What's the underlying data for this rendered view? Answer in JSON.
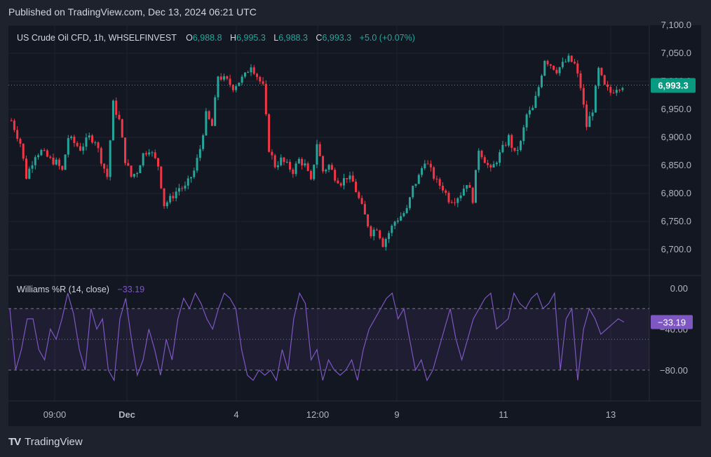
{
  "publisher": {
    "text": "Published on TradingView.com, Dec 13, 2024 06:21 UTC"
  },
  "legend": {
    "symbol": "US Crude Oil CFD, 1h, WHSELFINVEST",
    "o_label": "O",
    "o": "6,988.8",
    "h_label": "H",
    "h": "6,995.3",
    "l_label": "L",
    "l": "6,988.3",
    "c_label": "C",
    "c": "6,993.3",
    "change": "+5.0 (+0.07%)"
  },
  "indicator": {
    "name": "Williams %R (14, close)",
    "value": "−33.19",
    "badge": "−33.19"
  },
  "price_badge": "6,993.3",
  "footer": {
    "brand": "TradingView"
  },
  "colors": {
    "up": "#26a69a",
    "down": "#f23645",
    "wr_line": "#7e57c2",
    "background": "#131722",
    "badge": "#089981",
    "wr_badge": "#7e57c2"
  },
  "chart_data": [
    {
      "type": "candlestick",
      "title": "US Crude Oil CFD, 1h, WHSELFINVEST",
      "x_ticks": [
        "09:00",
        "Dec",
        "4",
        "12:00",
        "9",
        "11",
        "13"
      ],
      "y_ticks": [
        "7,100.0",
        "7,050.0",
        "7,000.0",
        "6,950.0",
        "6,900.0",
        "6,850.0",
        "6,800.0",
        "6,750.0",
        "6,700.0"
      ],
      "ylim": [
        6690,
        7100
      ],
      "last_price": 6993.3,
      "close_path": [
        [
          0,
          6930
        ],
        [
          3,
          6890
        ],
        [
          5,
          6830
        ],
        [
          8,
          6870
        ],
        [
          10,
          6875
        ],
        [
          13,
          6860
        ],
        [
          15,
          6855
        ],
        [
          17,
          6840
        ],
        [
          19,
          6900
        ],
        [
          21,
          6890
        ],
        [
          23,
          6880
        ],
        [
          26,
          6900
        ],
        [
          28,
          6895
        ],
        [
          30,
          6860
        ],
        [
          32,
          6830
        ],
        [
          34,
          6960
        ],
        [
          36,
          6930
        ],
        [
          38,
          6860
        ],
        [
          40,
          6830
        ],
        [
          42,
          6840
        ],
        [
          44,
          6870
        ],
        [
          46,
          6880
        ],
        [
          49,
          6850
        ],
        [
          51,
          6780
        ],
        [
          53,
          6790
        ],
        [
          56,
          6810
        ],
        [
          58,
          6810
        ],
        [
          61,
          6840
        ],
        [
          63,
          6880
        ],
        [
          65,
          6940
        ],
        [
          67,
          6920
        ],
        [
          69,
          7010
        ],
        [
          72,
          7000
        ],
        [
          74,
          6990
        ],
        [
          76,
          7000
        ],
        [
          78,
          7010
        ],
        [
          80,
          7030
        ],
        [
          82,
          7010
        ],
        [
          84,
          6990
        ],
        [
          86,
          6880
        ],
        [
          88,
          6850
        ],
        [
          90,
          6860
        ],
        [
          92,
          6850
        ],
        [
          94,
          6840
        ],
        [
          96,
          6860
        ],
        [
          98,
          6850
        ],
        [
          100,
          6820
        ],
        [
          102,
          6890
        ],
        [
          104,
          6840
        ],
        [
          106,
          6850
        ],
        [
          108,
          6830
        ],
        [
          110,
          6820
        ],
        [
          112,
          6830
        ],
        [
          114,
          6820
        ],
        [
          116,
          6790
        ],
        [
          118,
          6760
        ],
        [
          120,
          6730
        ],
        [
          122,
          6740
        ],
        [
          124,
          6710
        ],
        [
          126,
          6730
        ],
        [
          128,
          6750
        ],
        [
          130,
          6760
        ],
        [
          132,
          6770
        ],
        [
          134,
          6810
        ],
        [
          136,
          6830
        ],
        [
          138,
          6860
        ],
        [
          140,
          6840
        ],
        [
          142,
          6820
        ],
        [
          144,
          6810
        ],
        [
          146,
          6790
        ],
        [
          148,
          6790
        ],
        [
          150,
          6800
        ],
        [
          152,
          6820
        ],
        [
          154,
          6790
        ],
        [
          156,
          6880
        ],
        [
          158,
          6860
        ],
        [
          160,
          6840
        ],
        [
          162,
          6860
        ],
        [
          164,
          6880
        ],
        [
          166,
          6900
        ],
        [
          168,
          6870
        ],
        [
          170,
          6890
        ],
        [
          172,
          6940
        ],
        [
          174,
          6950
        ],
        [
          176,
          6990
        ],
        [
          178,
          7040
        ],
        [
          180,
          7030
        ],
        [
          182,
          7020
        ],
        [
          184,
          7030
        ],
        [
          186,
          7040
        ],
        [
          188,
          7030
        ],
        [
          190,
          6990
        ],
        [
          192,
          6920
        ],
        [
          194,
          6950
        ],
        [
          196,
          7020
        ],
        [
          198,
          6990
        ],
        [
          200,
          6980
        ],
        [
          202,
          6990
        ],
        [
          204,
          6993.3
        ]
      ]
    },
    {
      "type": "line",
      "title": "Williams %R (14, close)",
      "y_ticks": [
        "0.00",
        "−40.00",
        "−80.00"
      ],
      "ylim": [
        -100,
        0
      ],
      "bands": [
        -20,
        -50,
        -80
      ],
      "last_value": -33.19,
      "values": [
        -20,
        -80,
        -60,
        -30,
        -30,
        -60,
        -70,
        -40,
        -50,
        -30,
        -5,
        -25,
        -60,
        -80,
        -20,
        -40,
        -30,
        -80,
        -90,
        -30,
        -10,
        -50,
        -85,
        -70,
        -40,
        -60,
        -85,
        -50,
        -70,
        -30,
        -10,
        -20,
        -5,
        -15,
        -30,
        -40,
        -20,
        -5,
        -10,
        -20,
        -60,
        -85,
        -90,
        -80,
        -85,
        -80,
        -90,
        -60,
        -80,
        -30,
        -5,
        -15,
        -70,
        -60,
        -90,
        -70,
        -80,
        -85,
        -80,
        -70,
        -90,
        -60,
        -40,
        -30,
        -20,
        -10,
        -5,
        -30,
        -20,
        -50,
        -80,
        -70,
        -90,
        -80,
        -60,
        -40,
        -20,
        -50,
        -70,
        -50,
        -30,
        -20,
        -10,
        -5,
        -40,
        -35,
        -30,
        -5,
        -15,
        -20,
        -10,
        -5,
        -20,
        -15,
        -5,
        -80,
        -30,
        -20,
        -90,
        -40,
        -20,
        -30,
        -45,
        -40,
        -35,
        -30,
        -33.19
      ]
    }
  ]
}
